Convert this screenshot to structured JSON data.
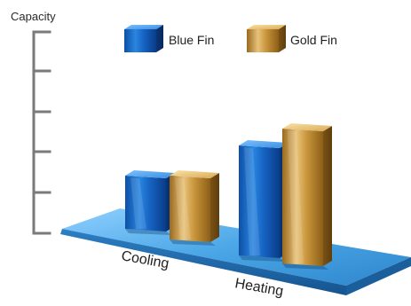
{
  "chart_data": {
    "type": "bar",
    "title": "",
    "ylabel": "Capacity",
    "xlabel": "",
    "categories": [
      "Cooling",
      "Heating"
    ],
    "series": [
      {
        "name": "Blue Fin",
        "values": [
          1.5,
          3.1
        ]
      },
      {
        "name": "Gold Fin",
        "values": [
          1.8,
          3.8
        ]
      }
    ],
    "ylim": [
      0,
      5
    ],
    "grid": false,
    "legend_position": "top",
    "colors": {
      "blue_fin": "#1f6fc6",
      "gold_fin": "#c99a3e",
      "base_plate": "#3f9ad6"
    }
  }
}
